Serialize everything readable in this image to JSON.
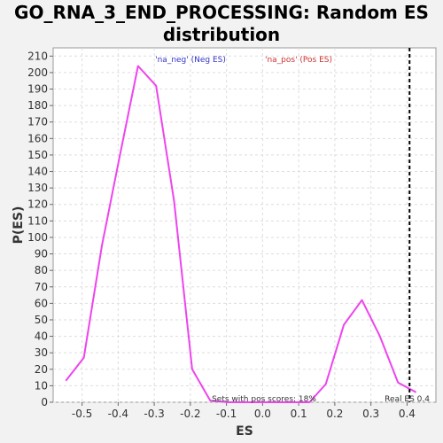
{
  "chart_data": {
    "type": "line",
    "title": "GO_RNA_3_END_PROCESSING: Random ES distribution",
    "xlabel": "ES",
    "ylabel": "P(ES)",
    "xlim": [
      -0.58,
      0.48
    ],
    "ylim": [
      0,
      215
    ],
    "xticks": [
      -0.5,
      -0.4,
      -0.3,
      -0.2,
      -0.1,
      0.0,
      0.1,
      0.2,
      0.3,
      0.4
    ],
    "yticks": [
      0,
      10,
      20,
      30,
      40,
      50,
      60,
      70,
      80,
      90,
      100,
      110,
      120,
      130,
      140,
      150,
      160,
      170,
      180,
      190,
      200,
      210
    ],
    "grid": true,
    "legend": [
      {
        "label": "'na_neg' (Neg ES)",
        "color": "#3333cc"
      },
      {
        "label": "'na_pos' (Pos ES)",
        "color": "#cc3333"
      }
    ],
    "legend_position": "top",
    "series": [
      {
        "color": "#ee44ee",
        "x": [
          -0.545,
          -0.495,
          -0.445,
          -0.395,
          -0.345,
          -0.295,
          -0.245,
          -0.195,
          -0.145,
          -0.095,
          -0.045,
          0.005,
          0.055,
          0.105,
          0.13,
          0.175,
          0.225,
          0.275,
          0.325,
          0.375,
          0.425
        ],
        "y": [
          13,
          27,
          95,
          150,
          204,
          192,
          122,
          20,
          1,
          0,
          0,
          0,
          0,
          0,
          0,
          11,
          47,
          62,
          40,
          12,
          6
        ]
      }
    ],
    "real_es": {
      "value": 0.407,
      "label": "Real ES 0.4"
    },
    "annotation": "Sets with pos scores: 18%"
  }
}
